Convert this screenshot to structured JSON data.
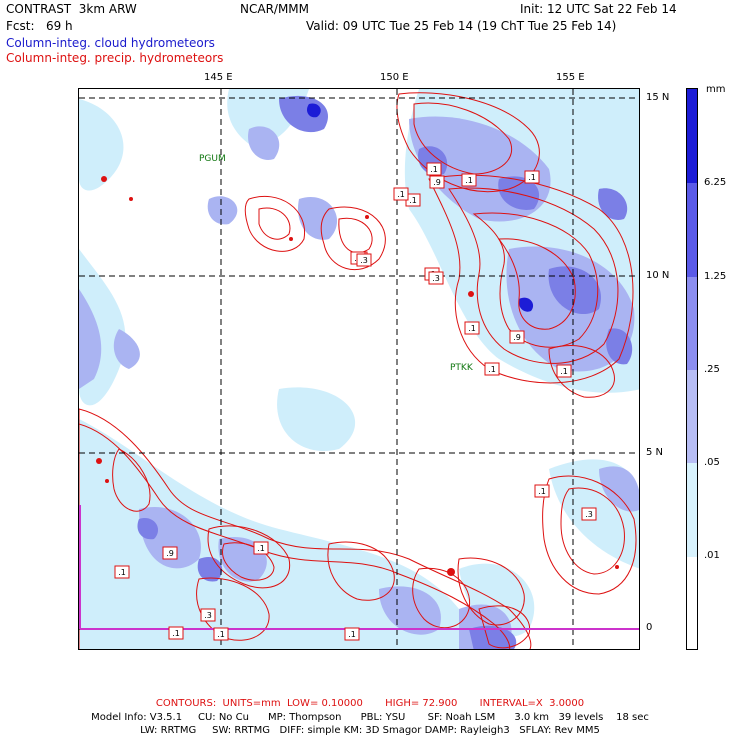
{
  "header": {
    "model": "CONTRAST  3km ARW",
    "org": "NCAR/MMM",
    "init": "Init: 12 UTC Sat 22 Feb 14",
    "fcst": "Fcst:   69 h",
    "valid": "Valid: 09 UTC Tue 25 Feb 14 (19 ChT Tue 25 Feb 14)",
    "field_cloud": "Column-integ. cloud hydrometeors",
    "field_precip": "Column-integ. precip. hydrometeors"
  },
  "map": {
    "lon_ticks": [
      "145 E",
      "150 E",
      "155 E"
    ],
    "lat_ticks": [
      "15 N",
      "10 N",
      "5 N",
      "0"
    ],
    "stations": [
      "PGUM",
      "PTKK"
    ],
    "contour_labels": [
      ".1",
      ".1",
      ".1",
      ".3",
      ".3",
      ".9",
      ".1",
      ".1",
      ".1",
      ".3",
      ".1",
      ".3",
      ".9",
      ".1",
      ".1",
      ".1",
      ".3",
      ".1",
      ".1",
      ".9",
      ".1",
      ".1",
      ".1",
      ".3"
    ],
    "colors": {
      "cloud_light": "#cfeefb",
      "cloud_mid": "#aab4f2",
      "cloud_dark": "#7b7fe6",
      "precip": "#dd1111",
      "grid": "#000000",
      "equator": "#cc33cc"
    }
  },
  "colorbar": {
    "unit": "mm",
    "labels": [
      "6.25",
      "1.25",
      ".25",
      ".05",
      ".01"
    ],
    "colors": [
      "#1c1cd6",
      "#5a5ae8",
      "#8c8ef0",
      "#b7bdf5",
      "#d8f2fd",
      "#ffffff"
    ]
  },
  "footer": {
    "contours": "CONTOURS:  UNITS=mm  LOW= 0.10000       HIGH= 72.900       INTERVAL=X  3.0000",
    "model_info_1": "Model Info: V3.5.1     CU: No Cu      MP: Thompson      PBL: YSU       SF: Noah LSM      3.0 km   39 levels    18 sec",
    "model_info_2": "LW: RRTMG     SW: RRTMG   DIFF: simple KM: 3D Smagor DAMP: Rayleigh3   SFLAY: Rev MM5"
  }
}
